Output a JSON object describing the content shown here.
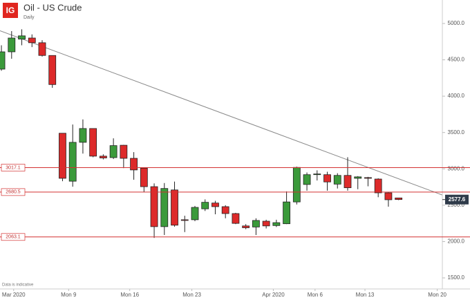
{
  "logo": "IG",
  "chart_data": {
    "type": "candlestick",
    "title": "Oil - US Crude",
    "subtitle": "Daily",
    "note": "Data is indicative",
    "series": [
      {
        "open": [
          4372,
          4610,
          4785,
          4800,
          4735,
          4560,
          3490,
          2830,
          3365,
          3555,
          3175,
          3155,
          3325,
          3145,
          3010,
          2755,
          2205,
          2710,
          2300,
          2300,
          2450,
          2530,
          2480,
          2385,
          2215,
          2200,
          2280,
          2220,
          2245,
          2545,
          2785,
          2920,
          2920,
          2790,
          2910,
          2870,
          2880,
          2860,
          2670,
          2600
        ],
        "high": [
          4700,
          4895,
          4920,
          4850,
          4770,
          4560,
          3490,
          3610,
          3680,
          3555,
          3200,
          3420,
          3330,
          3230,
          3020,
          2800,
          2805,
          2825,
          2355,
          2490,
          2580,
          2560,
          2500,
          2395,
          2240,
          2320,
          2300,
          2300,
          2690,
          3030,
          2950,
          2980,
          2960,
          2940,
          3160,
          2900,
          2890,
          2870,
          2680,
          2600
        ],
        "low": [
          4350,
          4515,
          4700,
          4675,
          4545,
          4115,
          2830,
          2755,
          3210,
          3160,
          3130,
          3135,
          3010,
          2850,
          2680,
          2050,
          2090,
          2205,
          2130,
          2280,
          2420,
          2375,
          2320,
          2240,
          2170,
          2090,
          2180,
          2200,
          2240,
          2510,
          2700,
          2840,
          2700,
          2730,
          2700,
          2720,
          2760,
          2610,
          2480,
          2570
        ],
        "close": [
          4610,
          4800,
          4830,
          4735,
          4560,
          4160,
          2870,
          3365,
          3555,
          3175,
          3150,
          3320,
          3145,
          2985,
          2755,
          2205,
          2730,
          2225,
          2290,
          2470,
          2540,
          2480,
          2385,
          2250,
          2190,
          2290,
          2215,
          2260,
          2545,
          3020,
          2920,
          2930,
          2820,
          2910,
          2740,
          2890,
          2870,
          2670,
          2575,
          2578
        ]
      }
    ],
    "up_color": "#3b9a3b",
    "down_color": "#dd2a2a",
    "xlim": [
      -0.14,
      43.3
    ],
    "xticks": [
      {
        "value": 1.2,
        "label": "Mar 2020"
      },
      {
        "value": 6.6,
        "label": "Mon 9"
      },
      {
        "value": 12.6,
        "label": "Mon 16"
      },
      {
        "value": 18.7,
        "label": "Mon 23"
      },
      {
        "value": 26.7,
        "label": "Apr 2020"
      },
      {
        "value": 30.8,
        "label": "Mon 6"
      },
      {
        "value": 35.7,
        "label": "Mon 13"
      },
      {
        "value": 42.8,
        "label": "Mon 20"
      }
    ],
    "ylim": [
      1348,
      5323
    ],
    "yticks": [
      {
        "value": 5000,
        "label": "5000.0"
      },
      {
        "value": 4500,
        "label": "4500.0"
      },
      {
        "value": 4000,
        "label": "4000.0"
      },
      {
        "value": 3500,
        "label": "3500.0"
      },
      {
        "value": 3000,
        "label": "3000.0"
      },
      {
        "value": 2500,
        "label": "2500.0"
      },
      {
        "value": 2000,
        "label": "2000.0"
      },
      {
        "value": 1500,
        "label": "1500.0"
      }
    ],
    "levels": [
      3017.1,
      2680.5,
      2063.1
    ],
    "level_color": "#d43030",
    "trendline": {
      "x": [
        -0.14,
        43.3
      ],
      "y": [
        4900,
        2640
      ],
      "color": "#888888"
    },
    "last_price": 2577.6
  }
}
